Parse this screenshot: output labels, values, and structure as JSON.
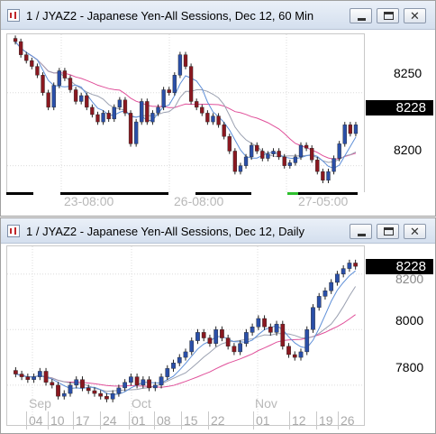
{
  "windows": [
    {
      "title": "1 / JYAZ2 - Japanese Yen-All Sessions, Dec 12, 60 Min",
      "price_labels": [
        "8250",
        "8200"
      ],
      "last_price": "8228",
      "time_labels": [
        "23-08:00",
        "26-08:00",
        "27-05:00"
      ],
      "buttons": {
        "minimize": "minimize",
        "maximize": "maximize",
        "close": "✕"
      }
    },
    {
      "title": "1 / JYAZ2 - Japanese Yen-All Sessions, Dec 12, Daily",
      "price_labels": [
        "8200",
        "8000",
        "7800"
      ],
      "last_price": "8228",
      "month_labels": [
        "Sep",
        "Oct",
        "Nov"
      ],
      "day_labels": [
        "04",
        "10",
        "17",
        "24",
        "01",
        "08",
        "15",
        "22",
        "01",
        "12",
        "19",
        "26"
      ],
      "buttons": {
        "minimize": "minimize",
        "maximize": "maximize",
        "close": "✕"
      }
    }
  ],
  "colors": {
    "up": "#2a4fa8",
    "down": "#8a1820",
    "ma_fast": "#5e8fd8",
    "ma_slow": "#e0509a",
    "ma_mid": "#9aa0b0"
  },
  "chart_data": [
    {
      "type": "candlestick",
      "title": "1 / JYAZ2 - Japanese Yen-All Sessions, Dec 12, 60 Min",
      "ylim": [
        8180,
        8290
      ],
      "x_labels": [
        "23-08:00",
        "26-08:00",
        "27-05:00"
      ],
      "closes": [
        8285,
        8276,
        8272,
        8268,
        8262,
        8250,
        8240,
        8255,
        8265,
        8260,
        8252,
        8244,
        8248,
        8240,
        8235,
        8230,
        8236,
        8232,
        8240,
        8245,
        8236,
        8215,
        8230,
        8244,
        8230,
        8236,
        8240,
        8252,
        8250,
        8262,
        8276,
        8268,
        8244,
        8240,
        8236,
        8230,
        8234,
        8228,
        8220,
        8210,
        8196,
        8200,
        8206,
        8214,
        8210,
        8205,
        8208,
        8210,
        8206,
        8200,
        8202,
        8206,
        8214,
        8212,
        8204,
        8196,
        8190,
        8196,
        8205,
        8215,
        8228,
        8222,
        8228
      ],
      "last": 8228
    },
    {
      "type": "candlestick",
      "title": "1 / JYAZ2 - Japanese Yen-All Sessions, Dec 12, Daily",
      "ylim": [
        7650,
        8300
      ],
      "x_labels": [
        "04",
        "10",
        "17",
        "24",
        "01",
        "08",
        "15",
        "22",
        "01",
        "12",
        "19",
        "26"
      ],
      "month_labels": [
        "Sep",
        "Oct",
        "Nov"
      ],
      "closes": [
        7840,
        7830,
        7820,
        7830,
        7850,
        7810,
        7800,
        7760,
        7770,
        7800,
        7820,
        7790,
        7780,
        7770,
        7760,
        7750,
        7770,
        7790,
        7810,
        7830,
        7800,
        7820,
        7790,
        7800,
        7830,
        7860,
        7880,
        7900,
        7920,
        7960,
        7990,
        7970,
        7950,
        8000,
        7970,
        7940,
        7920,
        7950,
        7990,
        8010,
        8040,
        8010,
        7990,
        8020,
        7940,
        7910,
        7900,
        7920,
        8000,
        8080,
        8120,
        8140,
        8170,
        8200,
        8220,
        8240,
        8228
      ],
      "last": 8228
    }
  ]
}
